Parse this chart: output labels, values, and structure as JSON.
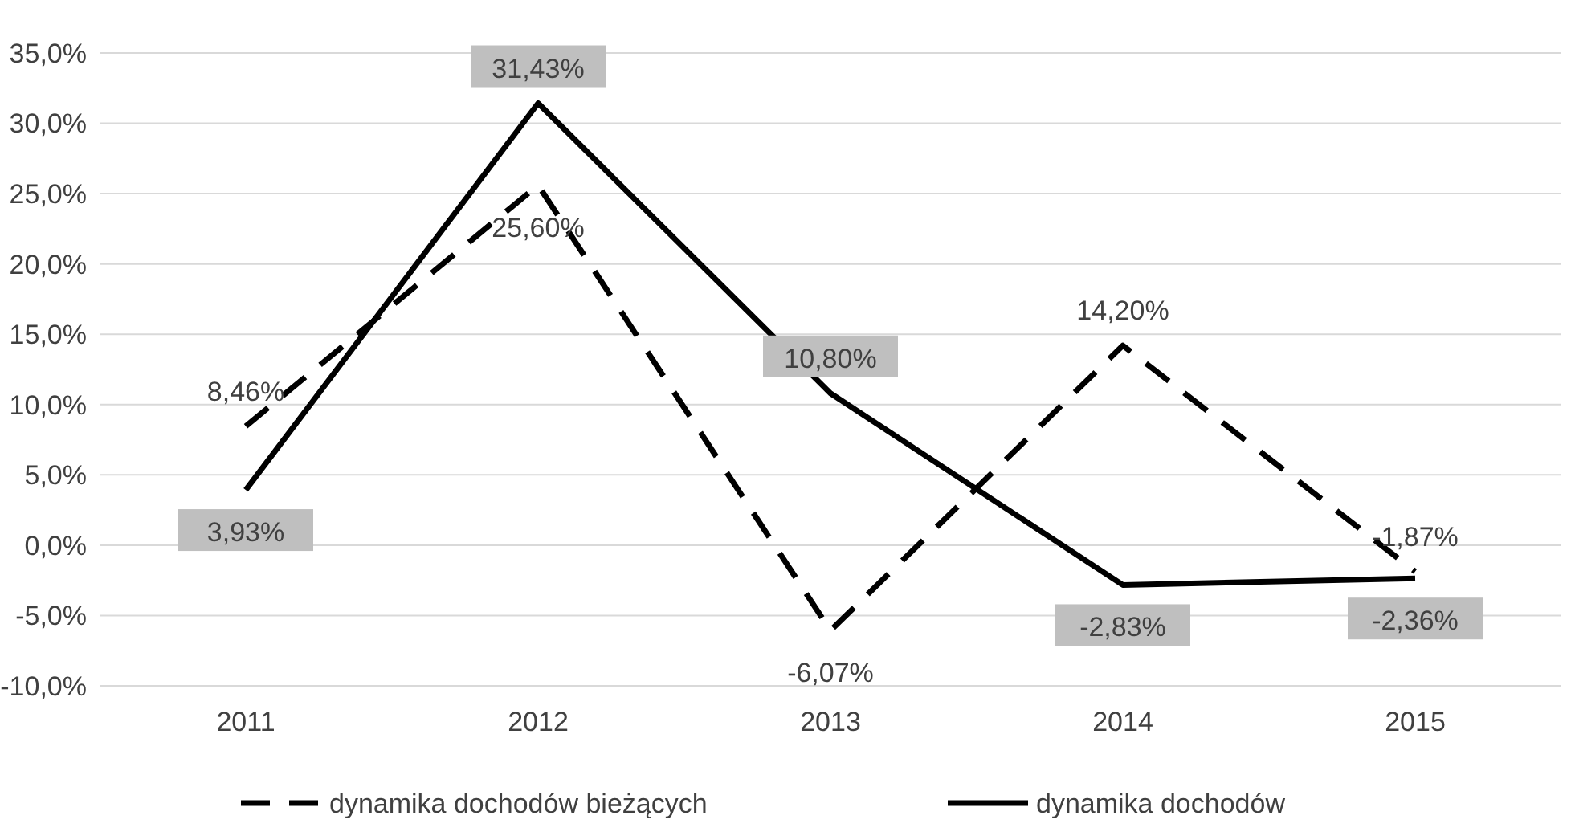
{
  "chart_data": {
    "type": "line",
    "categories": [
      "2011",
      "2012",
      "2013",
      "2014",
      "2015"
    ],
    "series": [
      {
        "name": "dynamika dochodów bieżących",
        "color": "#000000",
        "line_style": "dashed",
        "values": [
          8.46,
          25.6,
          -6.07,
          14.2,
          -1.87
        ],
        "value_labels": [
          "8,46%",
          "25,60%",
          "-6,07%",
          "14,20%",
          "-1,87%"
        ]
      },
      {
        "name": "dynamika dochodów",
        "color": "#000000",
        "line_style": "solid",
        "values": [
          3.93,
          31.43,
          10.8,
          -2.83,
          -2.36
        ],
        "value_labels": [
          "3,93%",
          "31,43%",
          "10,80%",
          "-2,83%",
          "-2,36%"
        ]
      }
    ],
    "ylim": [
      -10,
      35
    ],
    "yticks": [
      {
        "value": -10,
        "label": "-10,0%"
      },
      {
        "value": -5,
        "label": "-5,0%"
      },
      {
        "value": 0,
        "label": "0,0%"
      },
      {
        "value": 5,
        "label": "5,0%"
      },
      {
        "value": 10,
        "label": "10,0%"
      },
      {
        "value": 15,
        "label": "15,0%"
      },
      {
        "value": 20,
        "label": "20,0%"
      },
      {
        "value": 25,
        "label": "25,0%"
      },
      {
        "value": 30,
        "label": "30,0%"
      },
      {
        "value": 35,
        "label": "35,0%"
      }
    ],
    "grid": "y",
    "legend": "bottom"
  }
}
